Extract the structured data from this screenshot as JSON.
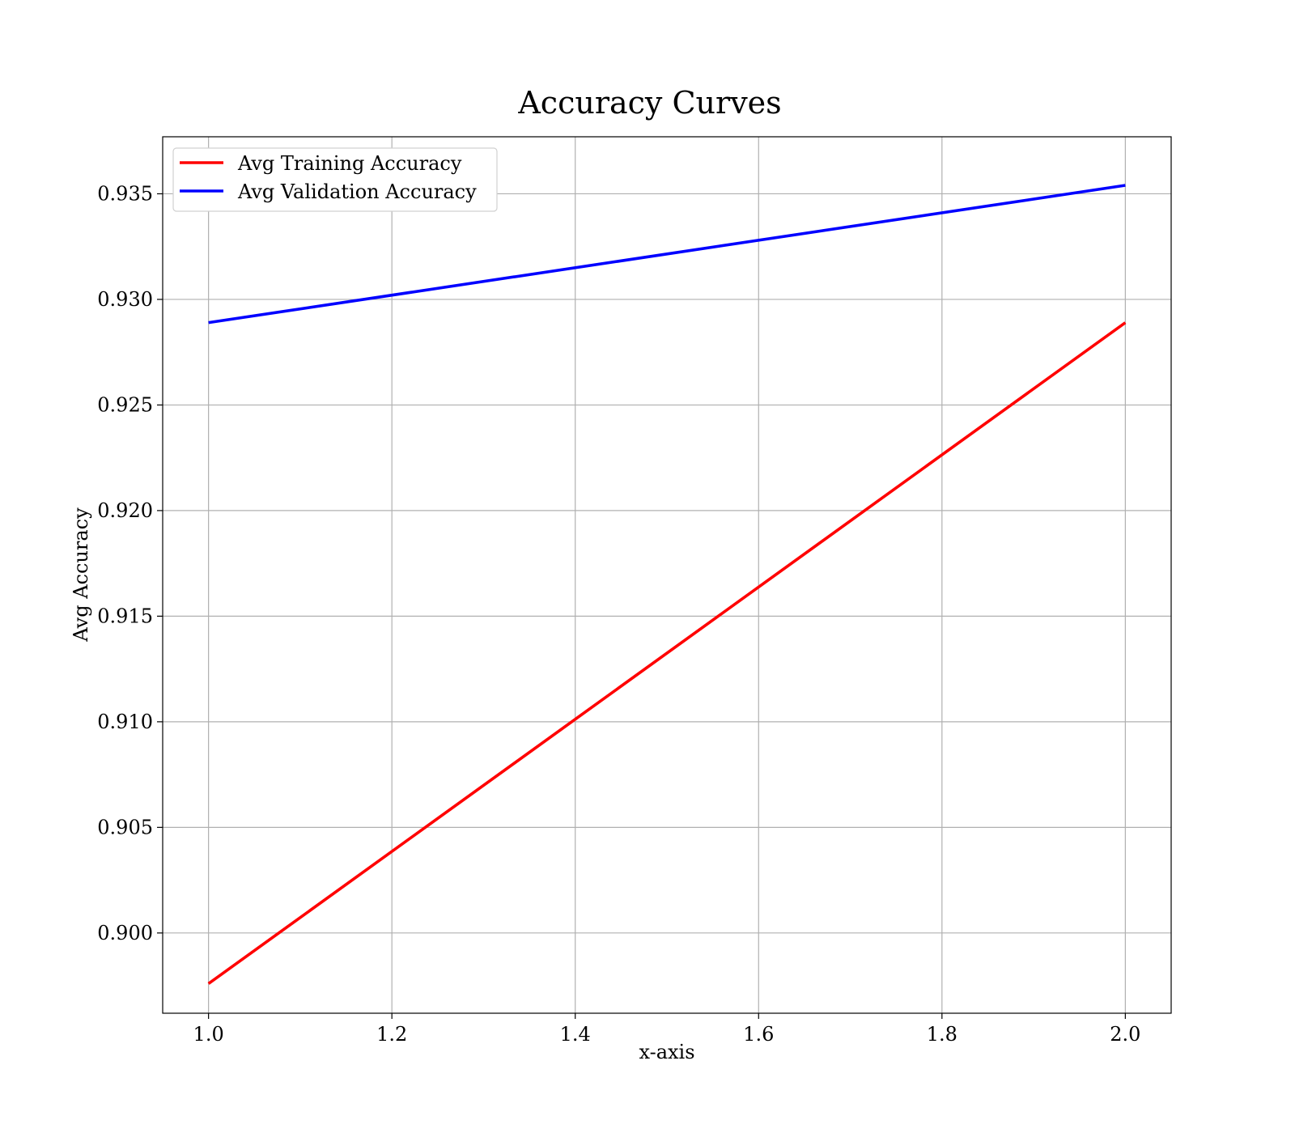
{
  "chart_data": {
    "type": "line",
    "title": "Accuracy Curves",
    "xlabel": "x-axis",
    "ylabel": "Avg Accuracy",
    "xlim": [
      0.95,
      2.05
    ],
    "ylim": [
      0.8962,
      0.9377
    ],
    "xticks": [
      1.0,
      1.2,
      1.4,
      1.6,
      1.8,
      2.0
    ],
    "xtick_labels": [
      "1.0",
      "1.2",
      "1.4",
      "1.6",
      "1.8",
      "2.0"
    ],
    "yticks": [
      0.9,
      0.905,
      0.91,
      0.915,
      0.92,
      0.925,
      0.93,
      0.935
    ],
    "ytick_labels": [
      "0.900",
      "0.905",
      "0.910",
      "0.915",
      "0.920",
      "0.925",
      "0.930",
      "0.935"
    ],
    "grid": true,
    "legend_position": "top-left",
    "x": [
      1.0,
      2.0
    ],
    "series": [
      {
        "name": "Avg Training Accuracy",
        "values": [
          0.8976,
          0.9289
        ],
        "color": "#ff0000"
      },
      {
        "name": "Avg Validation Accuracy",
        "values": [
          0.9289,
          0.9354
        ],
        "color": "#0000ff"
      }
    ]
  }
}
